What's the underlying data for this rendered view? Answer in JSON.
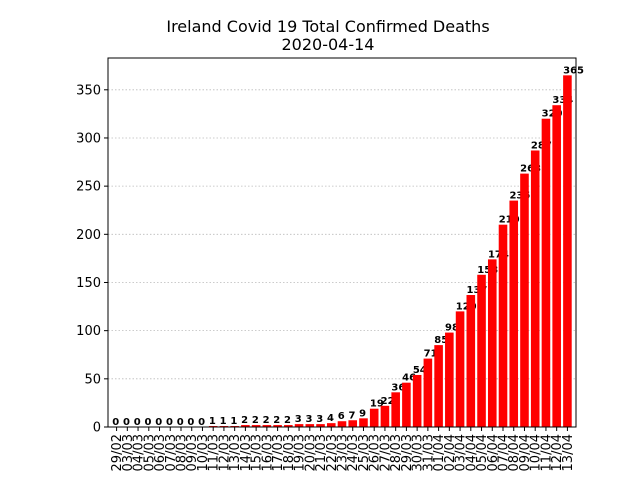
{
  "chart_data": {
    "type": "bar",
    "title": "Ireland Covid 19 Total Confirmed Deaths",
    "subtitle": "2020-04-14",
    "categories": [
      "29/02",
      "03/03",
      "04/03",
      "05/03",
      "06/03",
      "07/03",
      "08/03",
      "09/03",
      "10/03",
      "11/03",
      "12/03",
      "13/03",
      "14/03",
      "15/03",
      "16/03",
      "17/03",
      "18/03",
      "19/03",
      "20/03",
      "21/03",
      "22/03",
      "23/03",
      "24/03",
      "25/03",
      "26/03",
      "27/03",
      "28/03",
      "29/03",
      "30/03",
      "31/03",
      "01/04",
      "02/04",
      "03/04",
      "04/04",
      "05/04",
      "06/04",
      "07/04",
      "08/04",
      "09/04",
      "10/04",
      "11/04",
      "12/04",
      "13/04"
    ],
    "values": [
      0,
      0,
      0,
      0,
      0,
      0,
      0,
      0,
      0,
      1,
      1,
      1,
      2,
      2,
      2,
      2,
      2,
      3,
      3,
      3,
      4,
      6,
      7,
      9,
      19,
      22,
      36,
      46,
      54,
      71,
      85,
      98,
      120,
      137,
      158,
      174,
      210,
      235,
      263,
      287,
      320,
      334,
      365
    ],
    "color": "#ff0000",
    "ylim": [
      0,
      383
    ],
    "yticks": [
      0,
      50,
      100,
      150,
      200,
      250,
      300,
      350
    ],
    "grid": true
  }
}
